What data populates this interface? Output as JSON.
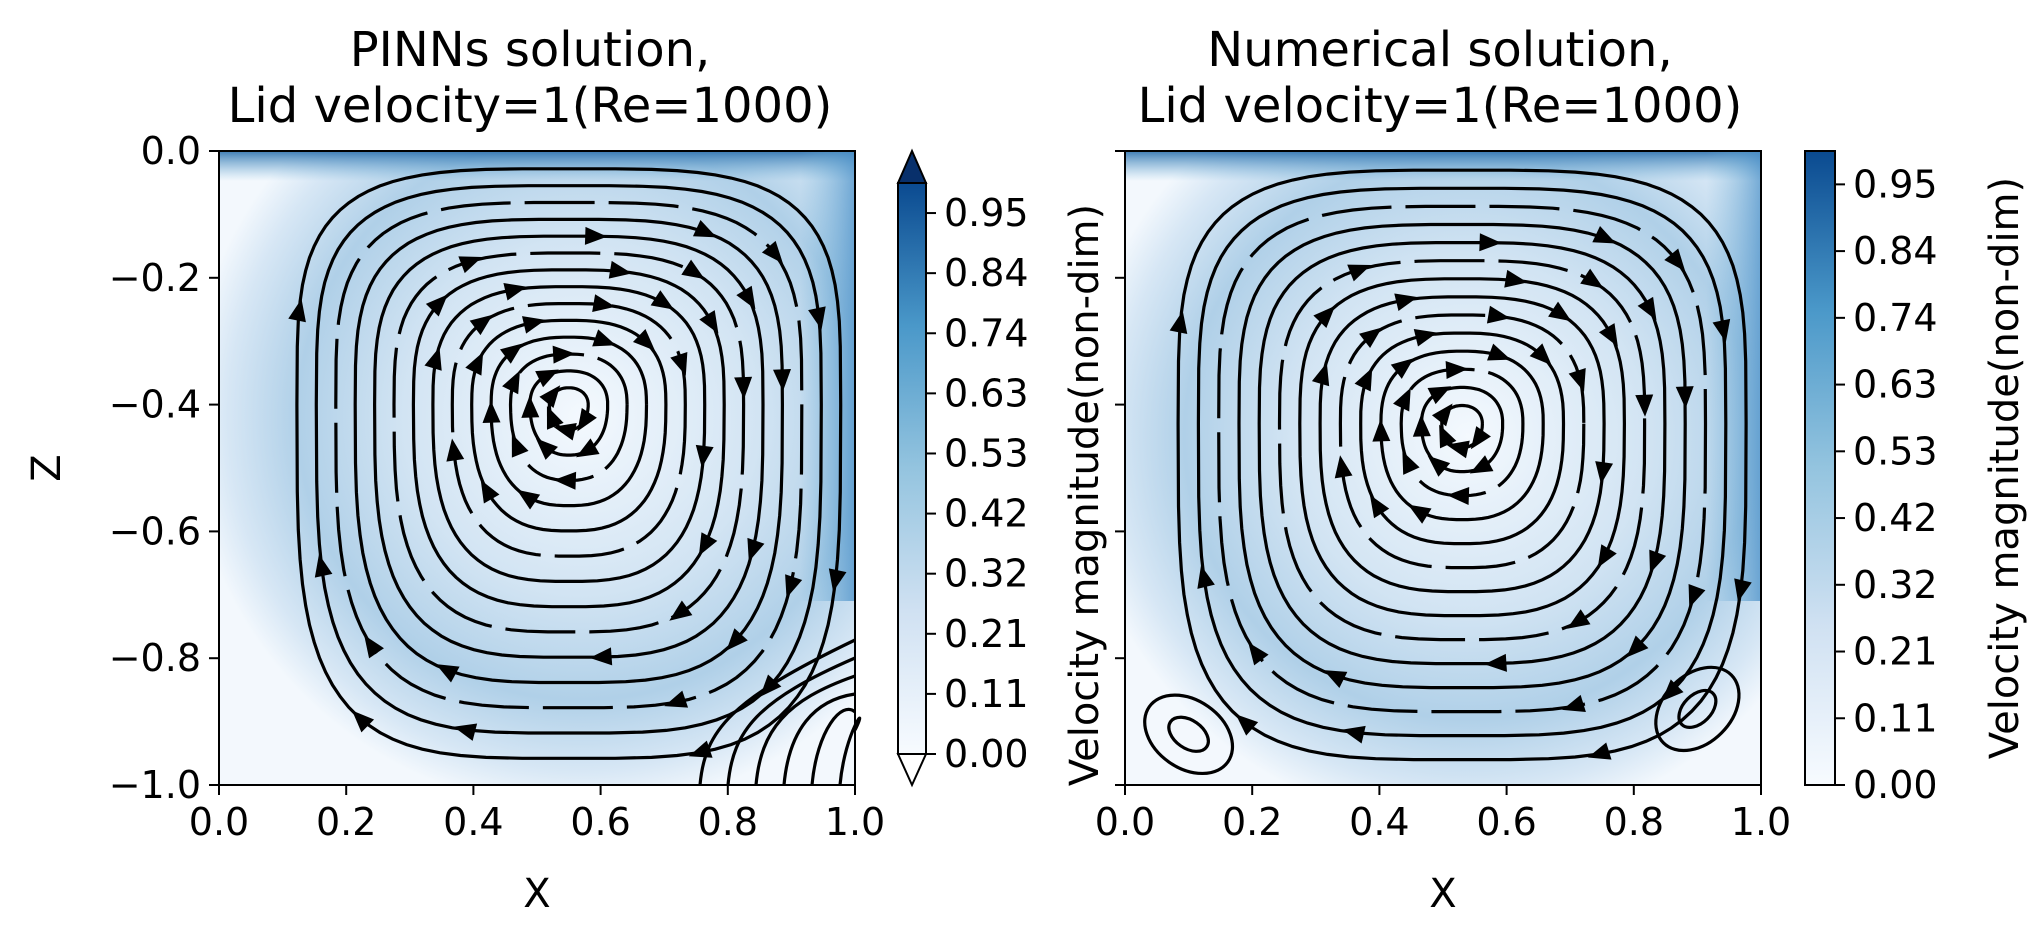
{
  "chart_data": [
    {
      "type": "heatmap",
      "title": [
        "PINNs solution,",
        "Lid velocity=1(Re=1000)"
      ],
      "xlabel": "X",
      "ylabel": "Z",
      "xlim": [
        0.0,
        1.0
      ],
      "ylim": [
        -1.0,
        0.0
      ],
      "x_ticks": [
        "0.0",
        "0.2",
        "0.4",
        "0.6",
        "0.8",
        "1.0"
      ],
      "y_ticks": [
        "0.0",
        "−0.2",
        "−0.4",
        "−0.6",
        "−0.8",
        "−1.0"
      ],
      "overlay": "streamlines",
      "colormap": "Blues",
      "vortex_center": [
        0.55,
        -0.4
      ],
      "colorbar": {
        "label": "Velocity magnitude(non-dim)",
        "ticks": [
          "0.00",
          "0.11",
          "0.21",
          "0.32",
          "0.42",
          "0.53",
          "0.63",
          "0.74",
          "0.84",
          "0.95"
        ],
        "extend": "both"
      }
    },
    {
      "type": "heatmap",
      "title": [
        "Numerical solution,",
        "Lid velocity=1(Re=1000)"
      ],
      "xlabel": "X",
      "ylabel": "",
      "xlim": [
        0.0,
        1.0
      ],
      "ylim": [
        -1.0,
        0.0
      ],
      "x_ticks": [
        "0.0",
        "0.2",
        "0.4",
        "0.6",
        "0.8",
        "1.0"
      ],
      "overlay": "streamlines",
      "colormap": "Blues",
      "vortex_center": [
        0.53,
        -0.43
      ],
      "secondary_vortices": [
        [
          0.1,
          -0.92
        ],
        [
          0.9,
          -0.88
        ]
      ],
      "colorbar": {
        "label": "Velocity magnitude(non-dim)",
        "ticks": [
          "0.00",
          "0.11",
          "0.21",
          "0.32",
          "0.42",
          "0.53",
          "0.63",
          "0.74",
          "0.84",
          "0.95"
        ],
        "extend": "none"
      }
    }
  ]
}
